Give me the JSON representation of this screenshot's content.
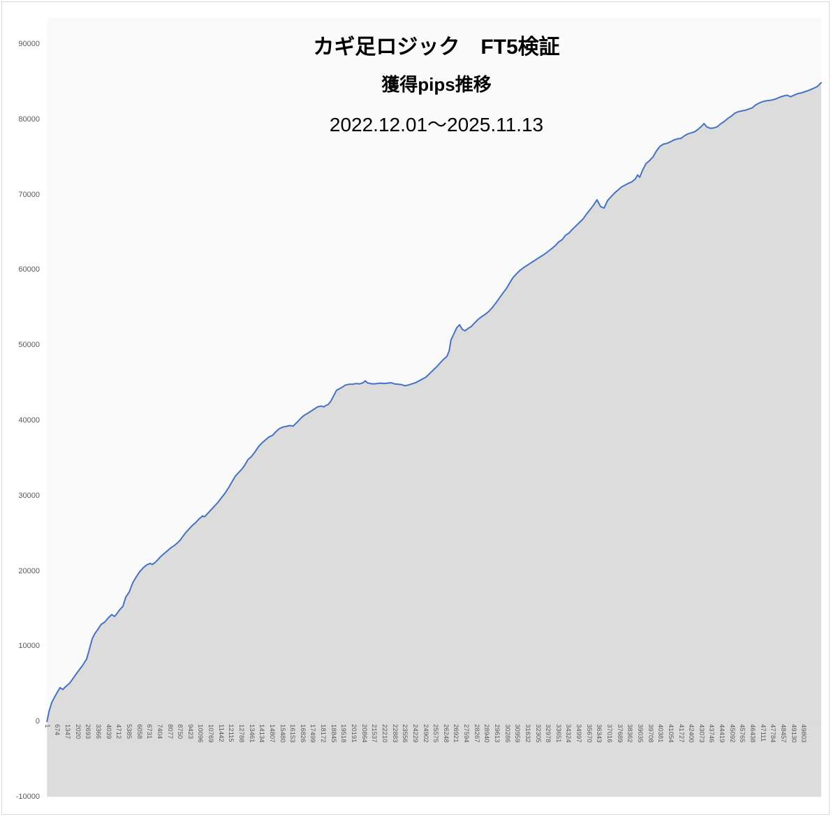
{
  "chart_data": {
    "type": "area",
    "title": "カギ足ロジック　FT5検証",
    "subtitle": "獲得pips推移",
    "period": "2022.12.01～2025.11.13",
    "legend": "none",
    "grid": "off",
    "xlim": [
      1,
      50969
    ],
    "ylim": [
      -10000,
      90000
    ],
    "y_ticks": [
      90000,
      80000,
      70000,
      60000,
      50000,
      40000,
      30000,
      20000,
      10000,
      0,
      -10000
    ],
    "x_ticks": [
      1,
      674,
      1347,
      2020,
      2693,
      3366,
      4039,
      4712,
      5385,
      6058,
      6731,
      7404,
      8077,
      8750,
      9423,
      10096,
      10769,
      11442,
      12115,
      12788,
      13461,
      14134,
      14807,
      15480,
      16153,
      16826,
      17499,
      18172,
      18845,
      19518,
      20191,
      20864,
      21537,
      22210,
      22883,
      23556,
      24229,
      24902,
      25575,
      26248,
      26921,
      27594,
      28267,
      28940,
      29613,
      30286,
      30959,
      31632,
      32305,
      32978,
      33651,
      34324,
      34997,
      35670,
      36343,
      37016,
      37689,
      38362,
      39035,
      39708,
      40381,
      41054,
      41727,
      42400,
      43073,
      43746,
      44419,
      45092,
      45765,
      46438,
      47111,
      47784,
      48457,
      49130,
      49803
    ],
    "colors": {
      "line": "#4472C4",
      "fill": "#DCDCDC",
      "plot_bg": "#FAFAFA",
      "axis": "#D9D9D9",
      "border": "#D9D9D9",
      "tick_text": "#595959",
      "title_text": "#000000"
    },
    "series": [
      {
        "points": [
          [
            1,
            0
          ],
          [
            130,
            1300
          ],
          [
            310,
            2500
          ],
          [
            490,
            3200
          ],
          [
            680,
            3900
          ],
          [
            860,
            4500
          ],
          [
            1040,
            4250
          ],
          [
            1270,
            4700
          ],
          [
            1500,
            5100
          ],
          [
            1780,
            5900
          ],
          [
            2060,
            6700
          ],
          [
            2330,
            7400
          ],
          [
            2610,
            8300
          ],
          [
            2790,
            9600
          ],
          [
            2980,
            11000
          ],
          [
            3160,
            11700
          ],
          [
            3340,
            12200
          ],
          [
            3570,
            12900
          ],
          [
            3800,
            13200
          ],
          [
            4030,
            13750
          ],
          [
            4260,
            14200
          ],
          [
            4450,
            13950
          ],
          [
            4630,
            14400
          ],
          [
            4810,
            14900
          ],
          [
            5000,
            15300
          ],
          [
            5180,
            16500
          ],
          [
            5410,
            17200
          ],
          [
            5640,
            18400
          ],
          [
            5870,
            19200
          ],
          [
            6100,
            19900
          ],
          [
            6330,
            20400
          ],
          [
            6560,
            20800
          ],
          [
            6790,
            21000
          ],
          [
            6930,
            20850
          ],
          [
            7110,
            21100
          ],
          [
            7300,
            21500
          ],
          [
            7480,
            21900
          ],
          [
            7710,
            22300
          ],
          [
            7940,
            22700
          ],
          [
            8170,
            23100
          ],
          [
            8400,
            23400
          ],
          [
            8630,
            23800
          ],
          [
            8770,
            24100
          ],
          [
            8950,
            24600
          ],
          [
            9140,
            25100
          ],
          [
            9320,
            25500
          ],
          [
            9550,
            26000
          ],
          [
            9780,
            26400
          ],
          [
            10010,
            26900
          ],
          [
            10240,
            27300
          ],
          [
            10380,
            27200
          ],
          [
            10560,
            27600
          ],
          [
            10790,
            28100
          ],
          [
            11020,
            28600
          ],
          [
            11250,
            29100
          ],
          [
            11480,
            29700
          ],
          [
            11710,
            30300
          ],
          [
            11940,
            31000
          ],
          [
            12170,
            31800
          ],
          [
            12400,
            32600
          ],
          [
            12630,
            33100
          ],
          [
            12860,
            33600
          ],
          [
            13000,
            34000
          ],
          [
            13230,
            34800
          ],
          [
            13460,
            35200
          ],
          [
            13690,
            35800
          ],
          [
            13920,
            36500
          ],
          [
            14150,
            37000
          ],
          [
            14380,
            37400
          ],
          [
            14610,
            37800
          ],
          [
            14840,
            38000
          ],
          [
            15070,
            38500
          ],
          [
            15290,
            38900
          ],
          [
            15520,
            39100
          ],
          [
            15750,
            39200
          ],
          [
            15980,
            39300
          ],
          [
            16210,
            39250
          ],
          [
            16440,
            39700
          ],
          [
            16580,
            40000
          ],
          [
            16770,
            40400
          ],
          [
            16950,
            40700
          ],
          [
            17130,
            40900
          ],
          [
            17360,
            41200
          ],
          [
            17590,
            41500
          ],
          [
            17820,
            41800
          ],
          [
            18050,
            41900
          ],
          [
            18240,
            41800
          ],
          [
            18370,
            42000
          ],
          [
            18510,
            42100
          ],
          [
            18700,
            42600
          ],
          [
            18880,
            43300
          ],
          [
            19060,
            44000
          ],
          [
            19250,
            44200
          ],
          [
            19430,
            44400
          ],
          [
            19660,
            44700
          ],
          [
            19890,
            44800
          ],
          [
            20120,
            44800
          ],
          [
            20350,
            44900
          ],
          [
            20580,
            44850
          ],
          [
            20810,
            45000
          ],
          [
            20950,
            45250
          ],
          [
            21090,
            45000
          ],
          [
            21270,
            44900
          ],
          [
            21500,
            44850
          ],
          [
            21730,
            44900
          ],
          [
            21960,
            44950
          ],
          [
            22190,
            44900
          ],
          [
            22420,
            44950
          ],
          [
            22650,
            45000
          ],
          [
            22880,
            44850
          ],
          [
            23110,
            44800
          ],
          [
            23340,
            44750
          ],
          [
            23570,
            44600
          ],
          [
            23800,
            44700
          ],
          [
            24030,
            44850
          ],
          [
            24260,
            45000
          ],
          [
            24490,
            45250
          ],
          [
            24720,
            45500
          ],
          [
            24950,
            45750
          ],
          [
            25180,
            46200
          ],
          [
            25410,
            46650
          ],
          [
            25640,
            47100
          ],
          [
            25870,
            47600
          ],
          [
            26100,
            48100
          ],
          [
            26330,
            48500
          ],
          [
            26470,
            49200
          ],
          [
            26600,
            50700
          ],
          [
            26790,
            51500
          ],
          [
            26970,
            52300
          ],
          [
            27160,
            52700
          ],
          [
            27340,
            52100
          ],
          [
            27520,
            51900
          ],
          [
            27710,
            52200
          ],
          [
            27940,
            52500
          ],
          [
            28170,
            53000
          ],
          [
            28400,
            53450
          ],
          [
            28630,
            53800
          ],
          [
            28860,
            54100
          ],
          [
            29090,
            54500
          ],
          [
            29320,
            55000
          ],
          [
            29550,
            55600
          ],
          [
            29780,
            56250
          ],
          [
            30010,
            56900
          ],
          [
            30240,
            57500
          ],
          [
            30470,
            58300
          ],
          [
            30690,
            59000
          ],
          [
            30920,
            59500
          ],
          [
            31150,
            59950
          ],
          [
            31380,
            60300
          ],
          [
            31610,
            60600
          ],
          [
            31840,
            60900
          ],
          [
            32070,
            61200
          ],
          [
            32300,
            61500
          ],
          [
            32530,
            61800
          ],
          [
            32760,
            62100
          ],
          [
            32990,
            62450
          ],
          [
            33220,
            62800
          ],
          [
            33450,
            63200
          ],
          [
            33680,
            63700
          ],
          [
            33910,
            64000
          ],
          [
            34140,
            64600
          ],
          [
            34370,
            64900
          ],
          [
            34600,
            65400
          ],
          [
            34830,
            65850
          ],
          [
            35060,
            66300
          ],
          [
            35290,
            66750
          ],
          [
            35520,
            67400
          ],
          [
            35750,
            68000
          ],
          [
            35980,
            68600
          ],
          [
            36210,
            69300
          ],
          [
            36440,
            68400
          ],
          [
            36670,
            68200
          ],
          [
            36900,
            69200
          ],
          [
            37130,
            69700
          ],
          [
            37360,
            70200
          ],
          [
            37590,
            70600
          ],
          [
            37820,
            71000
          ],
          [
            38050,
            71250
          ],
          [
            38280,
            71500
          ],
          [
            38510,
            71700
          ],
          [
            38740,
            72100
          ],
          [
            38880,
            72600
          ],
          [
            39020,
            72300
          ],
          [
            39200,
            73200
          ],
          [
            39430,
            74100
          ],
          [
            39660,
            74500
          ],
          [
            39890,
            75000
          ],
          [
            40120,
            75800
          ],
          [
            40350,
            76400
          ],
          [
            40580,
            76700
          ],
          [
            40810,
            76800
          ],
          [
            41040,
            77000
          ],
          [
            41270,
            77250
          ],
          [
            41500,
            77400
          ],
          [
            41730,
            77450
          ],
          [
            41960,
            77800
          ],
          [
            42190,
            78050
          ],
          [
            42420,
            78200
          ],
          [
            42650,
            78350
          ],
          [
            42880,
            78700
          ],
          [
            43110,
            79100
          ],
          [
            43250,
            79430
          ],
          [
            43430,
            79000
          ],
          [
            43660,
            78800
          ],
          [
            43890,
            78850
          ],
          [
            44120,
            79000
          ],
          [
            44350,
            79400
          ],
          [
            44580,
            79700
          ],
          [
            44810,
            80100
          ],
          [
            45040,
            80400
          ],
          [
            45270,
            80800
          ],
          [
            45500,
            81000
          ],
          [
            45730,
            81100
          ],
          [
            45960,
            81200
          ],
          [
            46190,
            81350
          ],
          [
            46420,
            81500
          ],
          [
            46650,
            81900
          ],
          [
            46880,
            82150
          ],
          [
            47110,
            82350
          ],
          [
            47340,
            82450
          ],
          [
            47570,
            82500
          ],
          [
            47800,
            82600
          ],
          [
            48030,
            82750
          ],
          [
            48260,
            82950
          ],
          [
            48490,
            83100
          ],
          [
            48720,
            83200
          ],
          [
            48950,
            83000
          ],
          [
            49180,
            83200
          ],
          [
            49410,
            83400
          ],
          [
            49640,
            83500
          ],
          [
            49870,
            83650
          ],
          [
            50100,
            83800
          ],
          [
            50330,
            84000
          ],
          [
            50560,
            84200
          ],
          [
            50740,
            84400
          ],
          [
            50880,
            84700
          ],
          [
            50969,
            84850
          ]
        ]
      }
    ]
  }
}
